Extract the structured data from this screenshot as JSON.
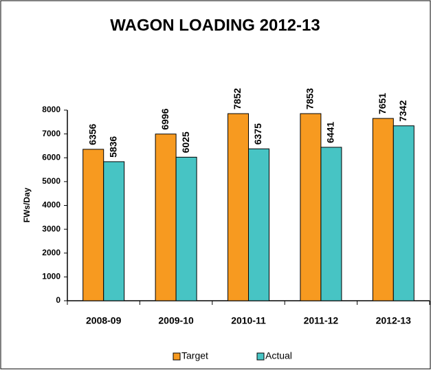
{
  "chart_data": {
    "type": "bar",
    "title": "WAGON LOADING 2012-13",
    "y_label": "FWs/Day",
    "categories": [
      "2008-09",
      "2009-10",
      "2010-11",
      "2011-12",
      "2012-13"
    ],
    "series": [
      {
        "name": "Target",
        "color": "#f79a20",
        "values": [
          6356,
          6996,
          7852,
          7853,
          7651
        ]
      },
      {
        "name": "Actual",
        "color": "#47c4c4",
        "values": [
          5836,
          6025,
          6375,
          6441,
          7342
        ]
      }
    ],
    "ylim": [
      0,
      8000
    ],
    "yticks": [
      0,
      1000,
      2000,
      3000,
      4000,
      5000,
      6000,
      7000,
      8000
    ],
    "grid": false,
    "legend": "bottom"
  }
}
